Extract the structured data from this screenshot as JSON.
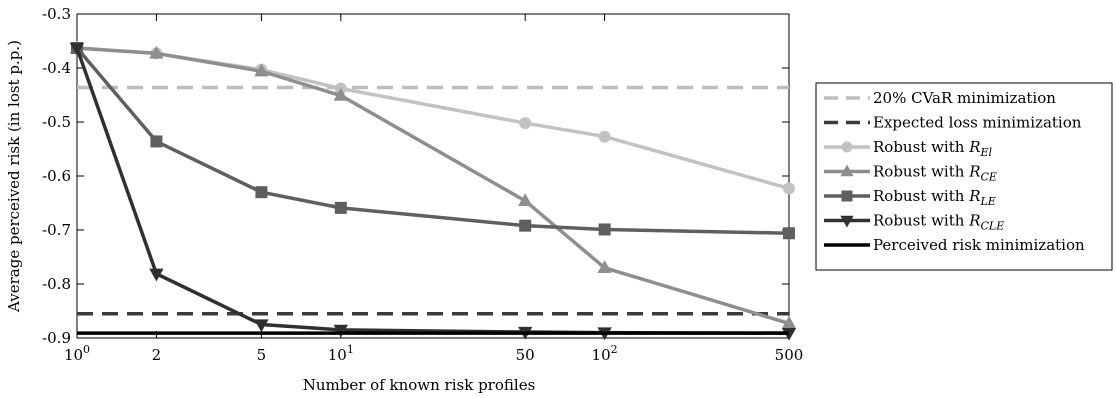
{
  "chart_data": {
    "type": "line",
    "xlabel": "Number of known risk profiles",
    "ylabel": "Average perceived risk (in lost p.p.)",
    "xscale": "log",
    "xlim": [
      1,
      500
    ],
    "ylim": [
      -0.9,
      -0.3
    ],
    "grid": false,
    "legend_position": "outside-right",
    "x_ticks": [
      {
        "value": 1,
        "base": "10",
        "exp": "0"
      },
      {
        "value": 2,
        "base": "2",
        "exp": ""
      },
      {
        "value": 5,
        "base": "5",
        "exp": ""
      },
      {
        "value": 10,
        "base": "10",
        "exp": "1"
      },
      {
        "value": 50,
        "base": "50",
        "exp": ""
      },
      {
        "value": 100,
        "base": "10",
        "exp": "2"
      },
      {
        "value": 500,
        "base": "500",
        "exp": ""
      }
    ],
    "y_ticks": [
      {
        "value": -0.3,
        "label": "-0.3"
      },
      {
        "value": -0.4,
        "label": "-0.4"
      },
      {
        "value": -0.5,
        "label": "-0.5"
      },
      {
        "value": -0.6,
        "label": "-0.6"
      },
      {
        "value": -0.7,
        "label": "-0.7"
      },
      {
        "value": -0.8,
        "label": "-0.8"
      },
      {
        "value": -0.9,
        "label": "-0.9"
      }
    ],
    "x": [
      1,
      2,
      5,
      10,
      50,
      100,
      500
    ],
    "series": [
      {
        "name": "20% CVaR minimization",
        "label_prefix": "20% CVaR minimization",
        "label_math": "",
        "label_sub": "",
        "style": "dashed",
        "marker": "none",
        "color": "#bdbdbd",
        "constant": -0.436
      },
      {
        "name": "Expected loss minimization",
        "label_prefix": "Expected loss minimization",
        "label_math": "",
        "label_sub": "",
        "style": "dashed",
        "marker": "none",
        "color": "#3a3a3a",
        "constant": -0.855
      },
      {
        "name": "Robust with R_El",
        "label_prefix": "Robust with ",
        "label_math": "R",
        "label_sub": "El",
        "style": "solid",
        "marker": "circle",
        "color": "#c2c2c2",
        "values": [
          -0.363,
          -0.373,
          -0.403,
          -0.438,
          -0.502,
          -0.527,
          -0.623
        ]
      },
      {
        "name": "Robust with R_CE",
        "label_prefix": "Robust with ",
        "label_math": "R",
        "label_sub": "CE",
        "style": "solid",
        "marker": "triangle-up",
        "color": "#8e8e8e",
        "values": [
          -0.363,
          -0.373,
          -0.406,
          -0.451,
          -0.646,
          -0.77,
          -0.873
        ]
      },
      {
        "name": "Robust with R_LE",
        "label_prefix": "Robust with ",
        "label_math": "R",
        "label_sub": "LE",
        "style": "solid",
        "marker": "square",
        "color": "#5f5f5f",
        "values": [
          -0.363,
          -0.536,
          -0.63,
          -0.659,
          -0.692,
          -0.699,
          -0.706
        ]
      },
      {
        "name": "Robust with R_CLE",
        "label_prefix": "Robust with ",
        "label_math": "R",
        "label_sub": "CLE",
        "style": "solid",
        "marker": "triangle-down",
        "color": "#303030",
        "values": [
          -0.363,
          -0.781,
          -0.875,
          -0.885,
          -0.889,
          -0.89,
          -0.891
        ]
      },
      {
        "name": "Perceived risk minimization",
        "label_prefix": "Perceived risk minimization",
        "label_math": "",
        "label_sub": "",
        "style": "solid",
        "marker": "none",
        "color": "#000000",
        "constant": -0.891
      }
    ]
  }
}
